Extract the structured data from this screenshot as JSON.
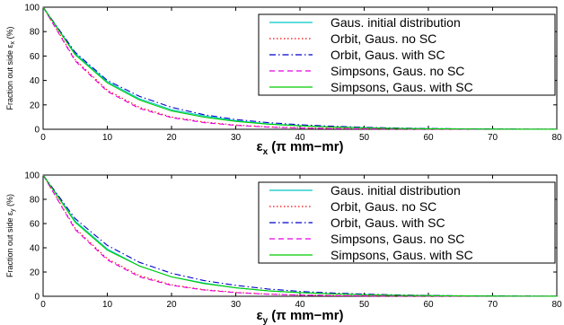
{
  "chart_data": [
    {
      "type": "line",
      "title": "",
      "xlabel": "εx (π mm−mr)",
      "xlabel_symbol": "ε",
      "xlabel_sub": "x",
      "xlabel_rest": " (π mm−mr)",
      "ylabel": "Fraction out side εx (%)",
      "ylabel_main": "Fraction out side ε",
      "ylabel_sub": "x",
      "ylabel_unit": "(%)",
      "xlim": [
        0,
        80
      ],
      "ylim": [
        0,
        100
      ],
      "xticks": [
        0,
        10,
        20,
        30,
        40,
        50,
        60,
        70,
        80
      ],
      "yticks": [
        0,
        20,
        40,
        60,
        80,
        100
      ],
      "grid": false,
      "legend_position": "top-right",
      "series": [
        {
          "name": "Gaus. initial distribution",
          "color": "#00c8c8",
          "dash": "solid",
          "x": [
            0,
            5,
            10,
            15,
            20,
            25,
            30,
            35,
            40,
            45,
            50,
            55,
            60,
            65,
            70,
            75,
            80
          ],
          "y": [
            100,
            62,
            39,
            25,
            16,
            11,
            7,
            4.5,
            3,
            2,
            1.3,
            0.8,
            0.5,
            0.3,
            0.2,
            0.1,
            0.05
          ]
        },
        {
          "name": "Orbit, Gaus. no SC",
          "color": "#ff0000",
          "dash": "dotted",
          "x": [
            0,
            5,
            10,
            15,
            20,
            25,
            30,
            35,
            40,
            45,
            50,
            55,
            60,
            65,
            70,
            75,
            80
          ],
          "y": [
            100,
            57,
            32,
            18,
            10,
            6,
            3.5,
            2,
            1.2,
            0.7,
            0.4,
            0.2,
            0.1,
            0.05,
            0.03,
            0.02,
            0.01
          ]
        },
        {
          "name": "Orbit, Gaus. with SC",
          "color": "#0000cc",
          "dash": "dashdot",
          "x": [
            0,
            5,
            10,
            15,
            20,
            25,
            30,
            35,
            40,
            45,
            50,
            55,
            60,
            65,
            70,
            75,
            80
          ],
          "y": [
            100,
            63,
            40,
            27,
            18,
            12,
            8,
            5.5,
            3.7,
            2.5,
            1.6,
            1,
            0.6,
            0.35,
            0.2,
            0.1,
            0.05
          ]
        },
        {
          "name": "Simpsons, Gaus. no SC",
          "color": "#e600e6",
          "dash": "dashed",
          "x": [
            0,
            5,
            10,
            15,
            20,
            25,
            30,
            35,
            40,
            45,
            50,
            55,
            60,
            65,
            70,
            75,
            80
          ],
          "y": [
            100,
            56,
            31,
            17,
            9.5,
            5.5,
            3.2,
            1.8,
            1,
            0.6,
            0.35,
            0.2,
            0.1,
            0.05,
            0.03,
            0.02,
            0.01
          ]
        },
        {
          "name": "Simpsons, Gaus. with SC",
          "color": "#00cc00",
          "dash": "solid",
          "x": [
            0,
            5,
            10,
            15,
            20,
            25,
            30,
            35,
            40,
            45,
            50,
            55,
            60,
            65,
            70,
            75,
            80
          ],
          "y": [
            100,
            61,
            38,
            24,
            15,
            10,
            6.5,
            4.2,
            2.8,
            1.8,
            1.2,
            0.7,
            0.45,
            0.28,
            0.15,
            0.08,
            0.04
          ]
        }
      ]
    },
    {
      "type": "line",
      "title": "",
      "xlabel": "εy (π mm−mr)",
      "xlabel_symbol": "ε",
      "xlabel_sub": "y",
      "xlabel_rest": " (π mm−mr)",
      "ylabel": "Fraction out side εy (%)",
      "ylabel_main": "Fraction out side ε",
      "ylabel_sub": "y",
      "ylabel_unit": "(%)",
      "xlim": [
        0,
        80
      ],
      "ylim": [
        0,
        100
      ],
      "xticks": [
        0,
        10,
        20,
        30,
        40,
        50,
        60,
        70,
        80
      ],
      "yticks": [
        0,
        20,
        40,
        60,
        80,
        100
      ],
      "grid": false,
      "legend_position": "top-right",
      "series": [
        {
          "name": "Gaus. initial distribution",
          "color": "#00c8c8",
          "dash": "solid",
          "x": [
            0,
            5,
            10,
            15,
            20,
            25,
            30,
            35,
            40,
            45,
            50,
            55,
            60,
            65,
            70,
            75,
            80
          ],
          "y": [
            100,
            62,
            39,
            25,
            16,
            11,
            7,
            4.5,
            3,
            2,
            1.3,
            0.8,
            0.5,
            0.3,
            0.2,
            0.1,
            0.05
          ]
        },
        {
          "name": "Orbit, Gaus. no SC",
          "color": "#ff0000",
          "dash": "dotted",
          "x": [
            0,
            5,
            10,
            15,
            20,
            25,
            30,
            35,
            40,
            45,
            50,
            55,
            60,
            65,
            70,
            75,
            80
          ],
          "y": [
            100,
            56,
            31,
            17,
            9.5,
            5.5,
            3.2,
            1.8,
            1,
            0.6,
            0.35,
            0.2,
            0.1,
            0.05,
            0.03,
            0.02,
            0.01
          ]
        },
        {
          "name": "Orbit, Gaus. with SC",
          "color": "#0000cc",
          "dash": "dashdot",
          "x": [
            0,
            5,
            10,
            15,
            20,
            25,
            30,
            35,
            40,
            45,
            50,
            55,
            60,
            65,
            70,
            75,
            80
          ],
          "y": [
            100,
            64,
            42,
            28,
            19,
            13,
            9,
            6,
            4,
            2.7,
            1.8,
            1.1,
            0.7,
            0.4,
            0.25,
            0.12,
            0.06
          ]
        },
        {
          "name": "Simpsons, Gaus. no SC",
          "color": "#e600e6",
          "dash": "dashed",
          "x": [
            0,
            5,
            10,
            15,
            20,
            25,
            30,
            35,
            40,
            45,
            50,
            55,
            60,
            65,
            70,
            75,
            80
          ],
          "y": [
            100,
            55,
            30,
            16,
            9,
            5.2,
            3,
            1.7,
            1,
            0.55,
            0.3,
            0.18,
            0.1,
            0.05,
            0.03,
            0.02,
            0.01
          ]
        },
        {
          "name": "Simpsons, Gaus. with SC",
          "color": "#00cc00",
          "dash": "solid",
          "x": [
            0,
            5,
            10,
            15,
            20,
            25,
            30,
            35,
            40,
            45,
            50,
            55,
            60,
            65,
            70,
            75,
            80
          ],
          "y": [
            100,
            61,
            38,
            25,
            16,
            10.5,
            7,
            4.5,
            3,
            2,
            1.3,
            0.8,
            0.5,
            0.3,
            0.17,
            0.09,
            0.04
          ]
        }
      ]
    }
  ]
}
